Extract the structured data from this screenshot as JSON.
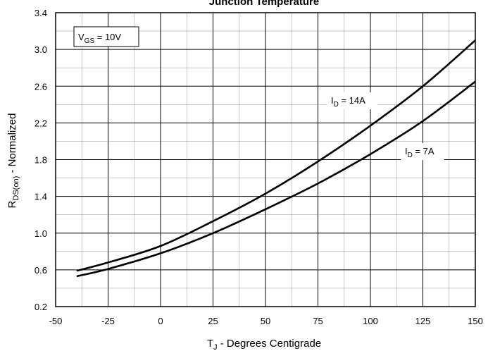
{
  "chart_data": {
    "type": "line",
    "title": "Junction Temperature",
    "xlabel": {
      "main": "T",
      "sub": "J",
      "rest": " - Degrees Centigrade"
    },
    "ylabel": {
      "main": "R",
      "sub": "DS(on)",
      "rest": " - Normalized"
    },
    "xlim": [
      -50,
      150
    ],
    "ylim": [
      0.2,
      3.4
    ],
    "x_ticks": [
      -50,
      -25,
      0,
      25,
      50,
      75,
      100,
      125,
      150
    ],
    "y_ticks": [
      0.2,
      0.6,
      1.0,
      1.4,
      1.8,
      2.2,
      2.6,
      3.0,
      3.4
    ],
    "y_tick_labels": [
      "0.2",
      "0.6",
      "1.0",
      "1.4",
      "1.8",
      "2.2",
      "2.6",
      "3.0",
      "3.4"
    ],
    "grid": true,
    "series": [
      {
        "name": "I_D = 14A",
        "label": {
          "main": "I",
          "sub": "D",
          "rest": " = 14A"
        },
        "x": [
          -40,
          -25,
          0,
          25,
          50,
          75,
          100,
          125,
          150
        ],
        "y": [
          0.59,
          0.68,
          0.86,
          1.13,
          1.43,
          1.78,
          2.17,
          2.6,
          3.1
        ]
      },
      {
        "name": "I_D = 7A",
        "label": {
          "main": "I",
          "sub": "D",
          "rest": " = 7A"
        },
        "x": [
          -40,
          -25,
          0,
          25,
          50,
          75,
          100,
          125,
          150
        ],
        "y": [
          0.53,
          0.61,
          0.78,
          1.0,
          1.26,
          1.54,
          1.86,
          2.22,
          2.65
        ]
      }
    ],
    "annotation": {
      "main": "V",
      "sub": "GS",
      "rest": " = 10V"
    },
    "colors": {
      "line": "#000000",
      "grid": "#000000",
      "background": "#ffffff"
    }
  }
}
